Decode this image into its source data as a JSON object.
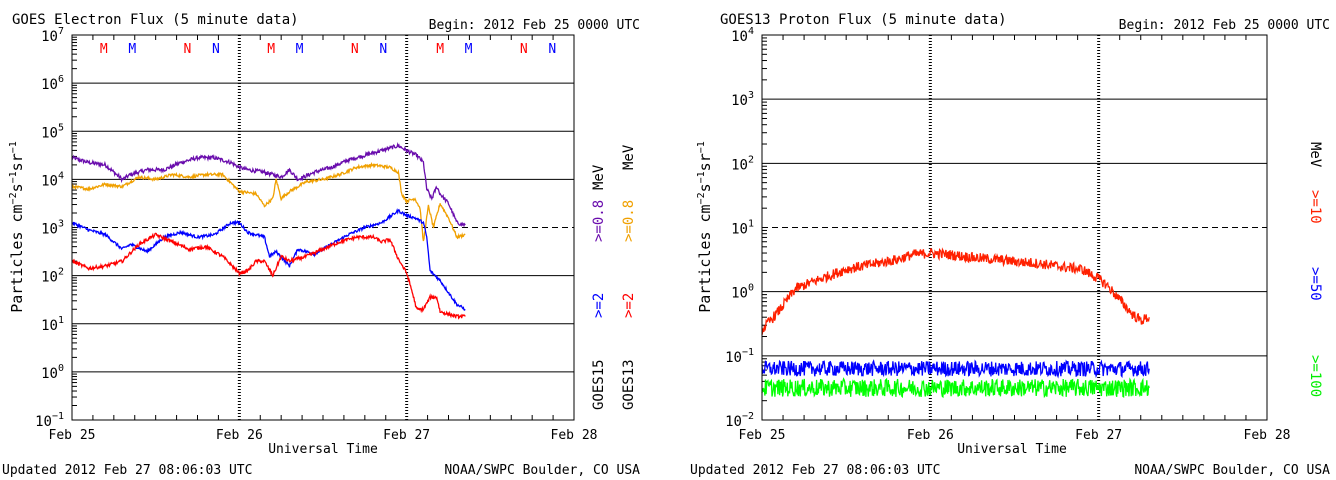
{
  "colors": {
    "purple": "#6a0dad",
    "orange": "#f0a000",
    "blue": "#0000ff",
    "red": "#ff0000",
    "proton_red": "#ff2000",
    "green": "#00ff00",
    "black": "#000000"
  },
  "chart_data": [
    {
      "type": "line",
      "title": "GOES Electron Flux (5 minute data)",
      "begin_label": "Begin: 2012 Feb 25 0000 UTC",
      "xlabel": "Universal Time",
      "ylabel_main": "Particles cm",
      "ylabel_exp1": "−2",
      "ylabel_mid1": "s",
      "ylabel_exp2": "−1",
      "ylabel_mid2": "sr",
      "ylabel_exp3": "−1",
      "x_ticks": [
        "Feb 25",
        "Feb 26",
        "Feb 27",
        "Feb 28"
      ],
      "x_range_days": [
        0,
        3
      ],
      "y_scale": "log",
      "y_ticks": [
        {
          "base": "10",
          "exp": "7"
        },
        {
          "base": "10",
          "exp": "6"
        },
        {
          "base": "10",
          "exp": "5"
        },
        {
          "base": "10",
          "exp": "4"
        },
        {
          "base": "10",
          "exp": "3"
        },
        {
          "base": "10",
          "exp": "2"
        },
        {
          "base": "10",
          "exp": "1"
        },
        {
          "base": "10",
          "exp": "0"
        },
        {
          "base": "10",
          "exp": "−1"
        }
      ],
      "y_range_exp": [
        -1,
        7
      ],
      "threshold_exp": 3,
      "markers": [
        {
          "label": "M",
          "day": 0.19,
          "color": "red"
        },
        {
          "label": "M",
          "day": 0.36,
          "color": "blue"
        },
        {
          "label": "N",
          "day": 0.69,
          "color": "red"
        },
        {
          "label": "N",
          "day": 0.86,
          "color": "blue"
        },
        {
          "label": "M",
          "day": 1.19,
          "color": "red"
        },
        {
          "label": "M",
          "day": 1.36,
          "color": "blue"
        },
        {
          "label": "N",
          "day": 1.69,
          "color": "red"
        },
        {
          "label": "N",
          "day": 1.86,
          "color": "blue"
        },
        {
          "label": "M",
          "day": 2.2,
          "color": "red"
        },
        {
          "label": "M",
          "day": 2.37,
          "color": "blue"
        },
        {
          "label": "N",
          "day": 2.7,
          "color": "red"
        },
        {
          "label": "N",
          "day": 2.87,
          "color": "blue"
        }
      ],
      "legend": {
        "satellite_a": "GOES15",
        "satellite_b": "GOES13",
        "a_high": ">=0.8",
        "b_high": ">=0.8",
        "a_low": ">=2",
        "b_low": ">=2",
        "unit": "MeV"
      },
      "series": [
        {
          "name": ">=0.8",
          "satellite": "GOES15",
          "color": "purple",
          "points": [
            [
              0,
              4.45
            ],
            [
              0.1,
              4.35
            ],
            [
              0.2,
              4.3
            ],
            [
              0.3,
              4.0
            ],
            [
              0.35,
              4.1
            ],
            [
              0.45,
              4.2
            ],
            [
              0.55,
              4.2
            ],
            [
              0.65,
              4.35
            ],
            [
              0.75,
              4.45
            ],
            [
              0.85,
              4.45
            ],
            [
              0.95,
              4.35
            ],
            [
              1.0,
              4.25
            ],
            [
              1.05,
              4.2
            ],
            [
              1.15,
              4.15
            ],
            [
              1.25,
              4.05
            ],
            [
              1.3,
              4.2
            ],
            [
              1.35,
              4.0
            ],
            [
              1.45,
              4.15
            ],
            [
              1.55,
              4.25
            ],
            [
              1.65,
              4.4
            ],
            [
              1.75,
              4.5
            ],
            [
              1.85,
              4.6
            ],
            [
              1.95,
              4.7
            ],
            [
              2.0,
              4.6
            ],
            [
              2.03,
              4.55
            ],
            [
              2.06,
              4.5
            ],
            [
              2.1,
              4.35
            ],
            [
              2.12,
              3.8
            ],
            [
              2.15,
              3.6
            ],
            [
              2.18,
              3.85
            ],
            [
              2.2,
              3.7
            ],
            [
              2.25,
              3.5
            ],
            [
              2.3,
              3.1
            ],
            [
              2.35,
              3.05
            ]
          ]
        },
        {
          "name": ">=0.8",
          "satellite": "GOES13",
          "color": "orange",
          "points": [
            [
              0,
              3.85
            ],
            [
              0.1,
              3.8
            ],
            [
              0.2,
              3.9
            ],
            [
              0.3,
              3.85
            ],
            [
              0.4,
              4.05
            ],
            [
              0.5,
              4.0
            ],
            [
              0.6,
              4.1
            ],
            [
              0.7,
              4.05
            ],
            [
              0.8,
              4.1
            ],
            [
              0.9,
              4.1
            ],
            [
              1.0,
              3.75
            ],
            [
              1.1,
              3.7
            ],
            [
              1.15,
              3.45
            ],
            [
              1.2,
              3.6
            ],
            [
              1.22,
              4.0
            ],
            [
              1.25,
              3.6
            ],
            [
              1.3,
              3.75
            ],
            [
              1.4,
              3.95
            ],
            [
              1.5,
              4.0
            ],
            [
              1.6,
              4.1
            ],
            [
              1.7,
              4.25
            ],
            [
              1.8,
              4.3
            ],
            [
              1.9,
              4.25
            ],
            [
              1.95,
              4.15
            ],
            [
              1.97,
              3.7
            ],
            [
              2.0,
              3.55
            ],
            [
              2.05,
              3.6
            ],
            [
              2.08,
              3.4
            ],
            [
              2.1,
              2.7
            ],
            [
              2.13,
              3.45
            ],
            [
              2.16,
              3.0
            ],
            [
              2.2,
              3.5
            ],
            [
              2.25,
              3.2
            ],
            [
              2.3,
              2.8
            ],
            [
              2.35,
              2.85
            ]
          ]
        },
        {
          "name": ">=2",
          "satellite": "GOES15",
          "color": "blue",
          "points": [
            [
              0,
              3.1
            ],
            [
              0.1,
              2.95
            ],
            [
              0.2,
              2.85
            ],
            [
              0.3,
              2.55
            ],
            [
              0.35,
              2.65
            ],
            [
              0.45,
              2.5
            ],
            [
              0.55,
              2.8
            ],
            [
              0.65,
              2.9
            ],
            [
              0.75,
              2.8
            ],
            [
              0.85,
              2.85
            ],
            [
              0.95,
              3.1
            ],
            [
              1.0,
              3.1
            ],
            [
              1.05,
              2.9
            ],
            [
              1.15,
              2.8
            ],
            [
              1.18,
              2.4
            ],
            [
              1.22,
              2.5
            ],
            [
              1.3,
              2.2
            ],
            [
              1.35,
              2.55
            ],
            [
              1.45,
              2.45
            ],
            [
              1.55,
              2.65
            ],
            [
              1.65,
              2.85
            ],
            [
              1.75,
              3.0
            ],
            [
              1.85,
              3.1
            ],
            [
              1.95,
              3.35
            ],
            [
              2.0,
              3.25
            ],
            [
              2.05,
              3.2
            ],
            [
              2.1,
              3.1
            ],
            [
              2.12,
              2.8
            ],
            [
              2.14,
              2.1
            ],
            [
              2.2,
              1.9
            ],
            [
              2.3,
              1.4
            ],
            [
              2.35,
              1.3
            ]
          ]
        },
        {
          "name": ">=2",
          "satellite": "GOES13",
          "color": "red",
          "points": [
            [
              0,
              2.3
            ],
            [
              0.1,
              2.15
            ],
            [
              0.2,
              2.2
            ],
            [
              0.3,
              2.3
            ],
            [
              0.4,
              2.65
            ],
            [
              0.5,
              2.85
            ],
            [
              0.6,
              2.7
            ],
            [
              0.7,
              2.55
            ],
            [
              0.8,
              2.6
            ],
            [
              0.9,
              2.4
            ],
            [
              1.0,
              2.05
            ],
            [
              1.05,
              2.1
            ],
            [
              1.1,
              2.3
            ],
            [
              1.15,
              2.3
            ],
            [
              1.2,
              2.0
            ],
            [
              1.25,
              2.4
            ],
            [
              1.3,
              2.3
            ],
            [
              1.4,
              2.4
            ],
            [
              1.5,
              2.55
            ],
            [
              1.6,
              2.7
            ],
            [
              1.7,
              2.8
            ],
            [
              1.8,
              2.8
            ],
            [
              1.85,
              2.7
            ],
            [
              1.9,
              2.75
            ],
            [
              1.95,
              2.35
            ],
            [
              2.0,
              2.05
            ],
            [
              2.03,
              1.7
            ],
            [
              2.06,
              1.3
            ],
            [
              2.1,
              1.3
            ],
            [
              2.14,
              1.55
            ],
            [
              2.18,
              1.55
            ],
            [
              2.2,
              1.25
            ],
            [
              2.25,
              1.2
            ],
            [
              2.3,
              1.15
            ],
            [
              2.35,
              1.15
            ]
          ]
        }
      ],
      "footer_left": "Updated 2012 Feb 27 08:06:03 UTC",
      "footer_right": "NOAA/SWPC Boulder, CO USA"
    },
    {
      "type": "line",
      "title": "GOES13 Proton Flux (5 minute data)",
      "begin_label": "Begin: 2012 Feb 25 0000 UTC",
      "xlabel": "Universal Time",
      "ylabel_main": "Particles cm",
      "ylabel_exp1": "−2",
      "ylabel_mid1": "s",
      "ylabel_exp2": "−1",
      "ylabel_mid2": "sr",
      "ylabel_exp3": "−1",
      "x_ticks": [
        "Feb 25",
        "Feb 26",
        "Feb 27",
        "Feb 28"
      ],
      "x_range_days": [
        0,
        3
      ],
      "y_scale": "log",
      "y_ticks": [
        {
          "base": "10",
          "exp": "4"
        },
        {
          "base": "10",
          "exp": "3"
        },
        {
          "base": "10",
          "exp": "2"
        },
        {
          "base": "10",
          "exp": "1"
        },
        {
          "base": "10",
          "exp": "0"
        },
        {
          "base": "10",
          "exp": "−1"
        },
        {
          "base": "10",
          "exp": "−2"
        }
      ],
      "y_range_exp": [
        -2,
        4
      ],
      "threshold_exp": 1,
      "legend": {
        "p10": ">=10",
        "p50": ">=50",
        "p100": ">=100",
        "unit": "MeV"
      },
      "series": [
        {
          "name": ">=10",
          "color": "proton_red",
          "points": [
            [
              0,
              -0.6
            ],
            [
              0.05,
              -0.45
            ],
            [
              0.1,
              -0.3
            ],
            [
              0.2,
              0.05
            ],
            [
              0.3,
              0.15
            ],
            [
              0.4,
              0.25
            ],
            [
              0.5,
              0.35
            ],
            [
              0.6,
              0.4
            ],
            [
              0.7,
              0.45
            ],
            [
              0.8,
              0.5
            ],
            [
              0.9,
              0.58
            ],
            [
              1.0,
              0.6
            ],
            [
              1.1,
              0.58
            ],
            [
              1.2,
              0.55
            ],
            [
              1.3,
              0.52
            ],
            [
              1.4,
              0.5
            ],
            [
              1.5,
              0.47
            ],
            [
              1.6,
              0.45
            ],
            [
              1.7,
              0.42
            ],
            [
              1.8,
              0.38
            ],
            [
              1.9,
              0.35
            ],
            [
              2.0,
              0.2
            ],
            [
              2.05,
              0.1
            ],
            [
              2.1,
              -0.05
            ],
            [
              2.15,
              -0.2
            ],
            [
              2.2,
              -0.35
            ],
            [
              2.25,
              -0.45
            ],
            [
              2.3,
              -0.4
            ]
          ]
        },
        {
          "name": ">=50",
          "color": "blue",
          "points": [
            [
              0,
              -1.2
            ],
            [
              0.3,
              -1.2
            ],
            [
              0.6,
              -1.2
            ],
            [
              0.9,
              -1.2
            ],
            [
              1.2,
              -1.2
            ],
            [
              1.5,
              -1.2
            ],
            [
              1.8,
              -1.2
            ],
            [
              2.1,
              -1.2
            ],
            [
              2.3,
              -1.2
            ]
          ]
        },
        {
          "name": ">=100",
          "color": "green",
          "points": [
            [
              0,
              -1.5
            ],
            [
              0.3,
              -1.5
            ],
            [
              0.6,
              -1.5
            ],
            [
              0.9,
              -1.5
            ],
            [
              1.2,
              -1.5
            ],
            [
              1.5,
              -1.5
            ],
            [
              1.8,
              -1.5
            ],
            [
              2.1,
              -1.5
            ],
            [
              2.3,
              -1.5
            ]
          ]
        }
      ],
      "footer_left": "Updated 2012 Feb 27 08:06:03 UTC",
      "footer_right": "NOAA/SWPC Boulder, CO USA"
    }
  ]
}
